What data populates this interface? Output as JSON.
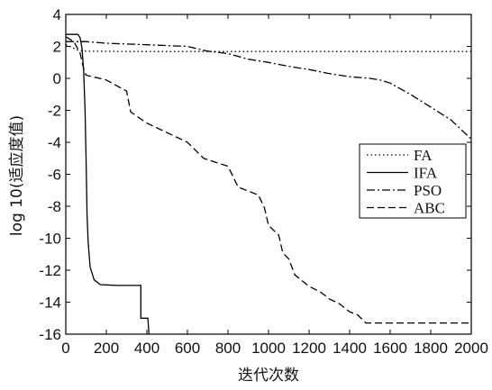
{
  "chart_data": {
    "type": "line",
    "xlabel": "迭代次数",
    "ylabel": "log 10(适应度值)",
    "xlim": [
      0,
      2000
    ],
    "ylim": [
      -16,
      4
    ],
    "xticks": [
      0,
      200,
      400,
      600,
      800,
      1000,
      1200,
      1400,
      1600,
      1800,
      2000
    ],
    "yticks": [
      4,
      2,
      0,
      -2,
      -4,
      -6,
      -8,
      -10,
      -12,
      -14,
      -16
    ],
    "grid": false,
    "legend_position": "center-right",
    "series": [
      {
        "name": "FA",
        "style": "dotted",
        "color": "#000000",
        "points": [
          [
            0,
            2.1
          ],
          [
            30,
            1.95
          ],
          [
            60,
            1.75
          ],
          [
            100,
            1.7
          ],
          [
            300,
            1.68
          ],
          [
            2000,
            1.68
          ]
        ]
      },
      {
        "name": "IFA",
        "style": "solid",
        "color": "#000000",
        "points": [
          [
            0,
            2.75
          ],
          [
            60,
            2.75
          ],
          [
            70,
            2.55
          ],
          [
            80,
            1.9
          ],
          [
            88,
            0.5
          ],
          [
            95,
            -2
          ],
          [
            100,
            -5
          ],
          [
            105,
            -8.5
          ],
          [
            110,
            -10.2
          ],
          [
            120,
            -11.8
          ],
          [
            140,
            -12.6
          ],
          [
            170,
            -12.9
          ],
          [
            250,
            -12.95
          ],
          [
            370,
            -12.95
          ],
          [
            370,
            -15
          ],
          [
            405,
            -15
          ],
          [
            410,
            -16
          ]
        ]
      },
      {
        "name": "PSO",
        "style": "dashdot",
        "color": "#000000",
        "points": [
          [
            0,
            2.3
          ],
          [
            100,
            2.3
          ],
          [
            200,
            2.2
          ],
          [
            400,
            2.1
          ],
          [
            600,
            2.0
          ],
          [
            700,
            1.7
          ],
          [
            800,
            1.55
          ],
          [
            900,
            1.2
          ],
          [
            1000,
            1.0
          ],
          [
            1100,
            0.75
          ],
          [
            1200,
            0.55
          ],
          [
            1300,
            0.3
          ],
          [
            1400,
            0.1
          ],
          [
            1500,
            0.0
          ],
          [
            1550,
            -0.1
          ],
          [
            1600,
            -0.3
          ],
          [
            1700,
            -1.0
          ],
          [
            1800,
            -1.8
          ],
          [
            1900,
            -2.6
          ],
          [
            2000,
            -3.8
          ]
        ]
      },
      {
        "name": "ABC",
        "style": "dashed",
        "color": "#000000",
        "points": [
          [
            0,
            2.6
          ],
          [
            40,
            2.3
          ],
          [
            70,
            1.6
          ],
          [
            90,
            0.5
          ],
          [
            100,
            0.2
          ],
          [
            200,
            -0.1
          ],
          [
            300,
            -0.8
          ],
          [
            320,
            -2.1
          ],
          [
            400,
            -2.8
          ],
          [
            500,
            -3.4
          ],
          [
            600,
            -4.0
          ],
          [
            680,
            -5.0
          ],
          [
            800,
            -5.5
          ],
          [
            850,
            -6.8
          ],
          [
            950,
            -7.3
          ],
          [
            980,
            -8.1
          ],
          [
            1000,
            -9.2
          ],
          [
            1050,
            -9.8
          ],
          [
            1070,
            -10.9
          ],
          [
            1100,
            -11.3
          ],
          [
            1130,
            -12.3
          ],
          [
            1200,
            -13.0
          ],
          [
            1260,
            -13.4
          ],
          [
            1300,
            -13.8
          ],
          [
            1350,
            -14.1
          ],
          [
            1400,
            -14.6
          ],
          [
            1440,
            -14.8
          ],
          [
            1480,
            -15.3
          ],
          [
            2000,
            -15.3
          ]
        ]
      }
    ]
  }
}
